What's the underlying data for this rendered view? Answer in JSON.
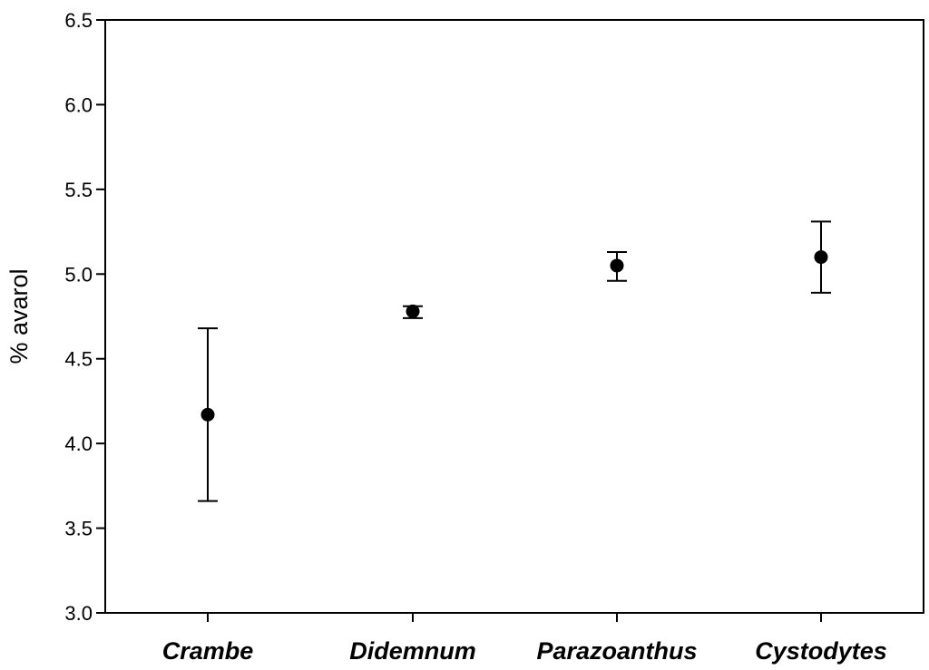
{
  "chart_data": {
    "type": "scatter",
    "title": "",
    "xlabel": "",
    "ylabel": "% avarol",
    "categories": [
      "Crambe",
      "Didemnum",
      "Parazoanthus",
      "Cystodytes"
    ],
    "series": [
      {
        "values": [
          4.17,
          4.78,
          5.05,
          5.1
        ],
        "error_low": [
          3.66,
          4.74,
          4.96,
          4.89
        ],
        "error_high": [
          4.68,
          4.81,
          5.13,
          5.31
        ]
      }
    ],
    "ylim": [
      3.0,
      6.5
    ],
    "yticks": [
      "3.0",
      "3.5",
      "4.0",
      "4.5",
      "5.0",
      "5.5",
      "6.0",
      "6.5"
    ],
    "grid": false,
    "marker_color": "#000000"
  }
}
